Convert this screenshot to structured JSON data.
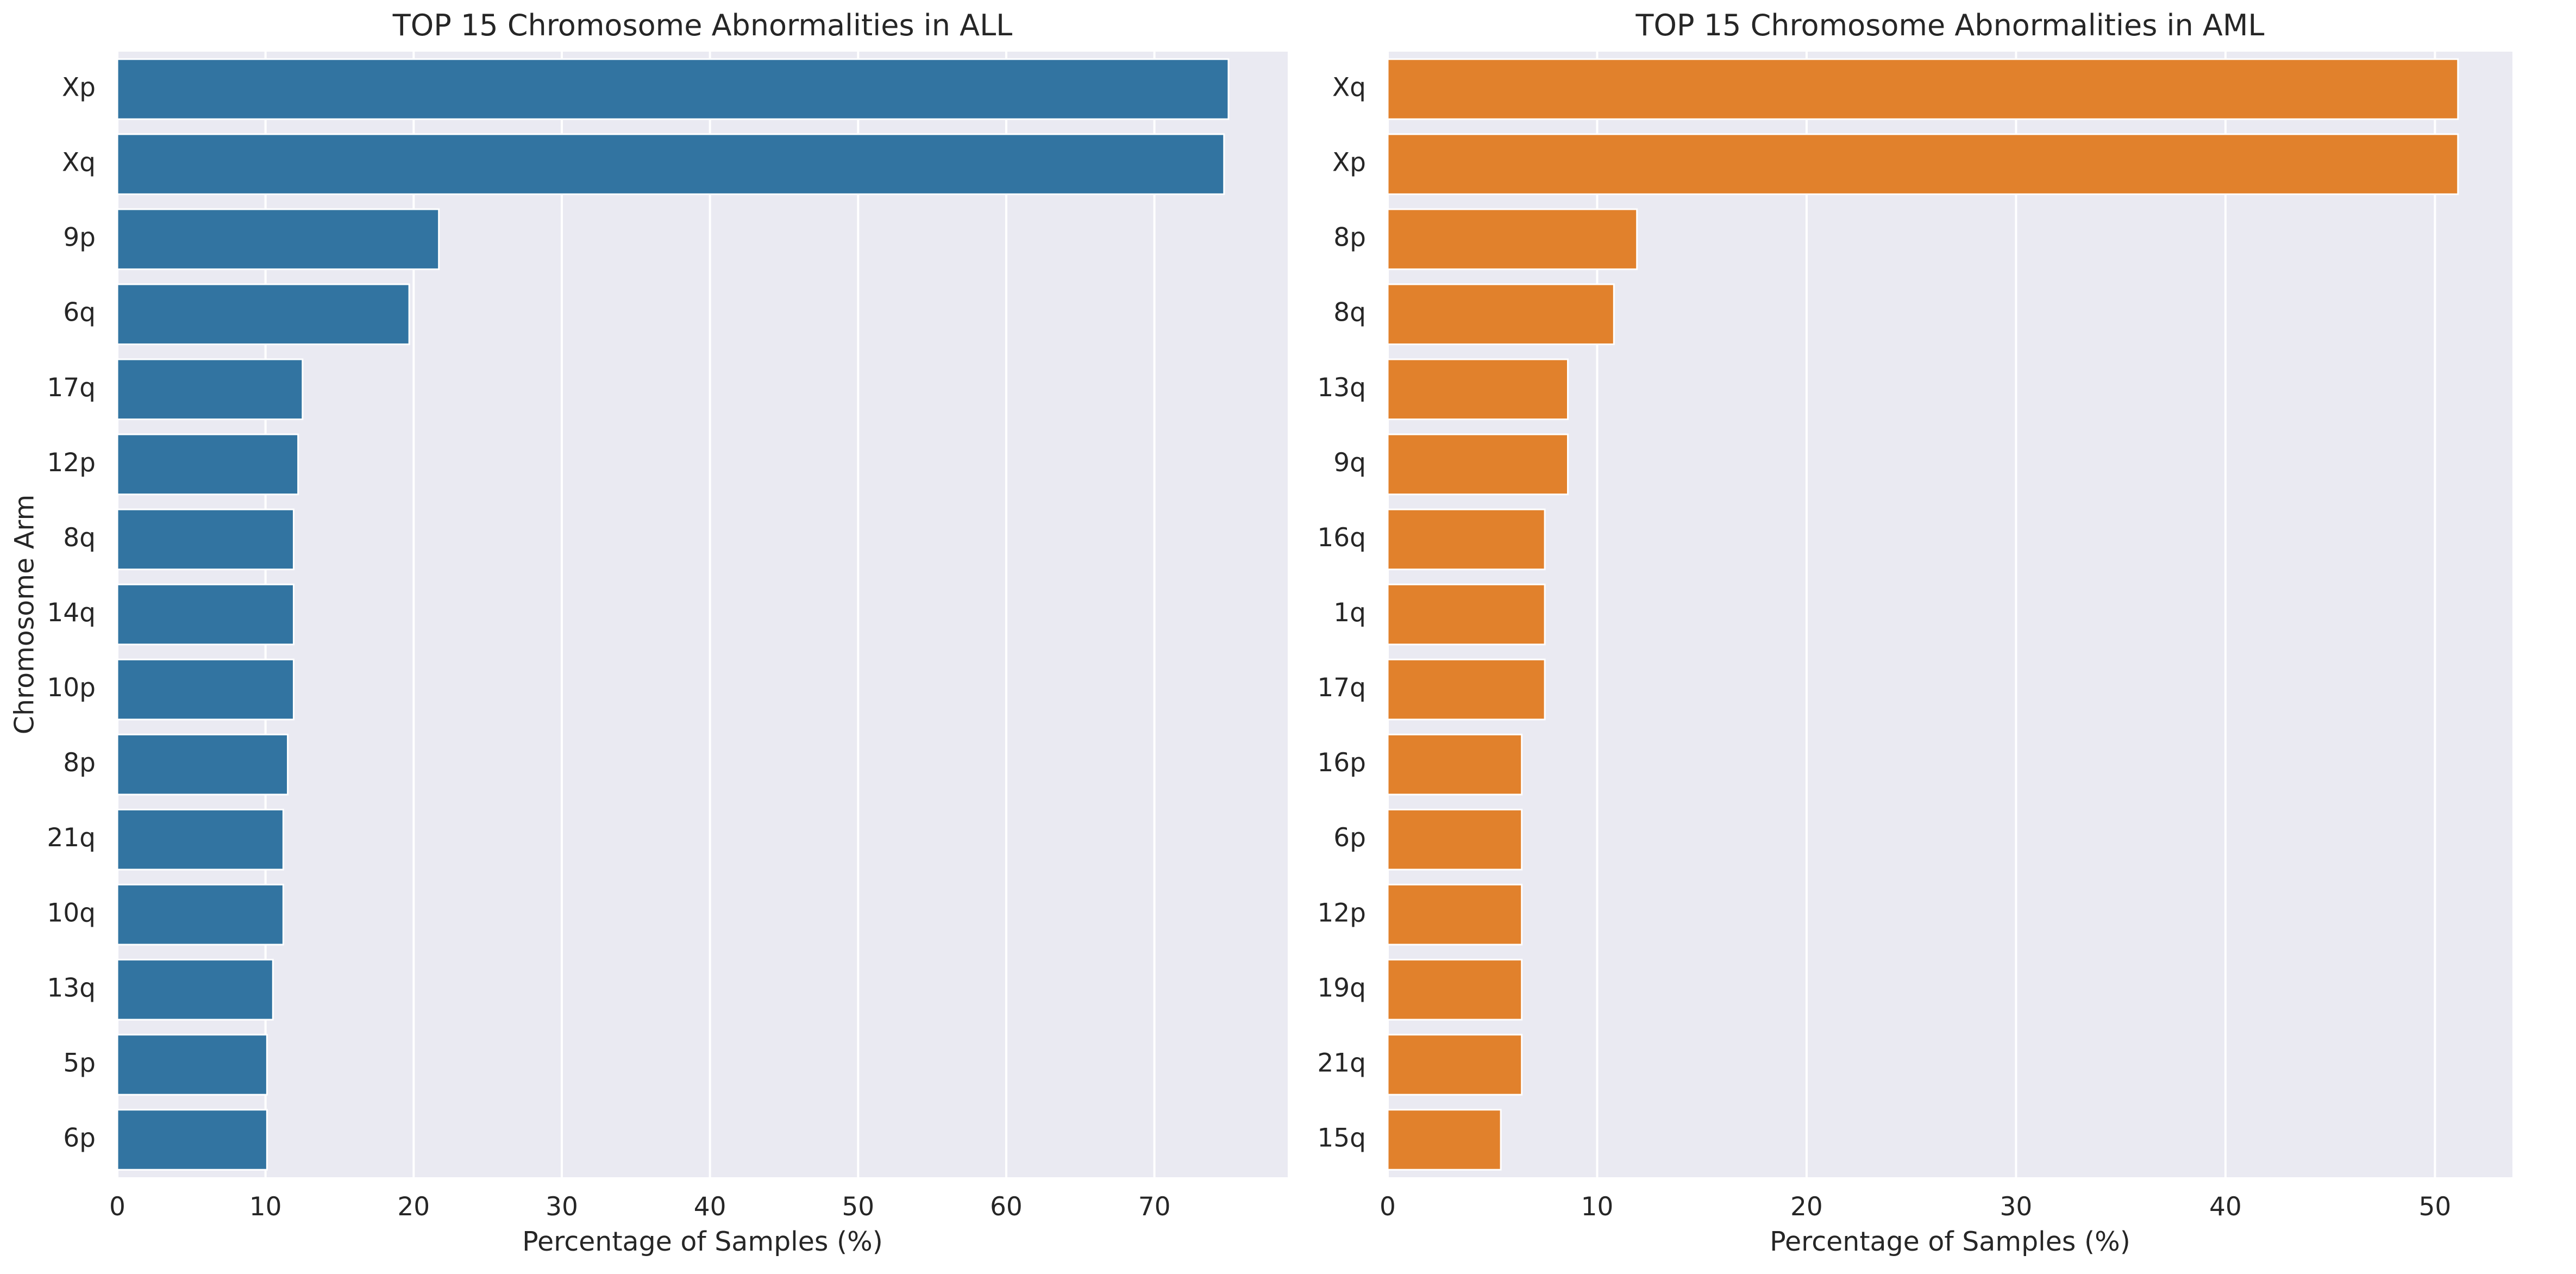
{
  "chart_data": [
    {
      "type": "bar",
      "orientation": "horizontal",
      "title": "TOP 15 Chromosome Abnormalities in ALL",
      "xlabel": "Percentage of Samples (%)",
      "ylabel": "Chromosome Arm",
      "xlim": [
        0,
        79
      ],
      "xticks": [
        0,
        10,
        20,
        30,
        40,
        50,
        60,
        70
      ],
      "grid": true,
      "color": "#3274a1",
      "categories": [
        "Xp",
        "Xq",
        "9p",
        "6q",
        "17q",
        "12p",
        "8q",
        "14q",
        "10p",
        "8p",
        "21q",
        "10q",
        "13q",
        "5p",
        "6p"
      ],
      "values": [
        75.0,
        74.7,
        21.7,
        19.7,
        12.5,
        12.2,
        11.9,
        11.9,
        11.9,
        11.5,
        11.2,
        11.2,
        10.5,
        10.1,
        10.1
      ]
    },
    {
      "type": "bar",
      "orientation": "horizontal",
      "title": "TOP 15 Chromosome Abnormalities in AML",
      "xlabel": "Percentage of Samples (%)",
      "ylabel": "",
      "xlim": [
        0,
        53.7
      ],
      "xticks": [
        0,
        10,
        20,
        30,
        40,
        50
      ],
      "grid": true,
      "color": "#e1812c",
      "categories": [
        "Xq",
        "Xp",
        "8p",
        "8q",
        "13q",
        "9q",
        "16q",
        "1q",
        "17q",
        "16p",
        "6p",
        "12p",
        "19q",
        "21q",
        "15q"
      ],
      "values": [
        51.1,
        51.1,
        11.9,
        10.8,
        8.6,
        8.6,
        7.5,
        7.5,
        7.5,
        6.4,
        6.4,
        6.4,
        6.4,
        6.4,
        5.4
      ]
    }
  ]
}
